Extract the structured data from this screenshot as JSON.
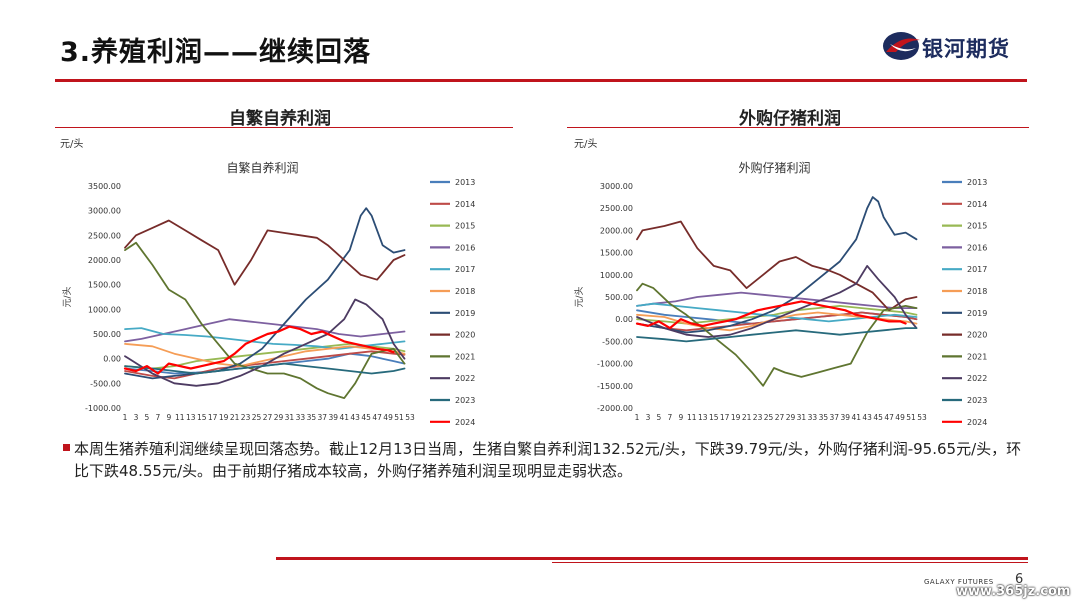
{
  "header": {
    "title": "3.养殖利润——继续回落",
    "logo_text": "银河期货"
  },
  "panels": [
    {
      "heading": "自繁自养利润",
      "unit": "元/头"
    },
    {
      "heading": "外购仔猪利润",
      "unit": "元/头"
    }
  ],
  "body": {
    "text": "本周生猪养殖利润继续呈现回落态势。截止12月13日当周，生猪自繁自养利润132.52元/头，下跌39.79元/头，外购仔猪利润-95.65元/头，环比下跌48.55元/头。由于前期仔猪成本较高，外购仔猪养殖利润呈现明显走弱状态。"
  },
  "footer": {
    "brand": "GALAXY FUTURES",
    "page_number": "6",
    "watermark": "www.365jz.com"
  },
  "colors": {
    "accent": "#c0141c",
    "brand_navy": "#1d2c5e"
  },
  "chart_data": [
    {
      "type": "line",
      "title": "自繁自养利润",
      "ylabel": "元/头",
      "ylim": [
        -1000,
        3500
      ],
      "yticks": [
        -1000,
        -500,
        0,
        500,
        1000,
        1500,
        2000,
        2500,
        3000,
        3500
      ],
      "ytick_labels": [
        "-1000.00",
        "-500.00",
        "0.00",
        "500.00",
        "1000.00",
        "1500.00",
        "2000.00",
        "2500.00",
        "3000.00",
        "3500.00"
      ],
      "x_range": [
        1,
        53
      ],
      "xtick_labels": [
        "1",
        "3",
        "5",
        "7",
        "9",
        "11",
        "13",
        "15",
        "17",
        "19",
        "21",
        "23",
        "25",
        "27",
        "29",
        "31",
        "33",
        "35",
        "37",
        "39",
        "41",
        "43",
        "45",
        "47",
        "49",
        "51",
        "53"
      ],
      "legend_position": "right",
      "series": [
        {
          "name": "2013",
          "color": "#4a7ebb",
          "x": [
            1,
            6,
            10,
            14,
            18,
            22,
            26,
            30,
            34,
            38,
            42,
            46,
            48,
            50,
            52
          ],
          "y": [
            -200,
            -250,
            -300,
            -280,
            -250,
            -200,
            -150,
            -100,
            -50,
            0,
            100,
            50,
            0,
            -50,
            -100
          ]
        },
        {
          "name": "2014",
          "color": "#be4b48",
          "x": [
            1,
            6,
            10,
            14,
            18,
            22,
            26,
            30,
            34,
            38,
            42,
            46,
            50,
            52
          ],
          "y": [
            -250,
            -350,
            -400,
            -300,
            -200,
            -150,
            -100,
            -50,
            0,
            50,
            100,
            150,
            100,
            80
          ]
        },
        {
          "name": "2015",
          "color": "#98b954",
          "x": [
            1,
            6,
            10,
            14,
            18,
            22,
            26,
            30,
            34,
            38,
            42,
            46,
            50,
            52
          ],
          "y": [
            -150,
            -200,
            -150,
            -50,
            0,
            50,
            100,
            150,
            200,
            250,
            300,
            250,
            200,
            150
          ]
        },
        {
          "name": "2016",
          "color": "#7d60a0",
          "x": [
            1,
            4,
            8,
            12,
            16,
            20,
            24,
            28,
            32,
            36,
            40,
            44,
            48,
            52
          ],
          "y": [
            350,
            400,
            500,
            600,
            700,
            800,
            750,
            700,
            650,
            600,
            500,
            450,
            500,
            550
          ]
        },
        {
          "name": "2017",
          "color": "#46aac5",
          "x": [
            1,
            4,
            8,
            12,
            16,
            20,
            24,
            28,
            32,
            36,
            40,
            44,
            48,
            52
          ],
          "y": [
            600,
            620,
            500,
            480,
            450,
            400,
            350,
            300,
            280,
            250,
            200,
            250,
            300,
            350
          ]
        },
        {
          "name": "2018",
          "color": "#f59d56",
          "x": [
            1,
            6,
            10,
            14,
            18,
            22,
            26,
            30,
            34,
            38,
            42,
            46,
            50,
            52
          ],
          "y": [
            300,
            250,
            100,
            0,
            -100,
            -150,
            -50,
            50,
            150,
            200,
            250,
            200,
            150,
            100
          ]
        },
        {
          "name": "2019",
          "color": "#2c4d75",
          "x": [
            1,
            6,
            10,
            14,
            18,
            22,
            26,
            30,
            34,
            38,
            42,
            44,
            45,
            46,
            48,
            50,
            52
          ],
          "y": [
            -300,
            -400,
            -350,
            -300,
            -250,
            -100,
            200,
            700,
            1200,
            1600,
            2200,
            2900,
            3050,
            2900,
            2300,
            2150,
            2200
          ]
        },
        {
          "name": "2020",
          "color": "#772c2a",
          "x": [
            1,
            3,
            6,
            9,
            12,
            15,
            18,
            21,
            24,
            27,
            30,
            33,
            36,
            38,
            41,
            44,
            47,
            50,
            52
          ],
          "y": [
            2250,
            2500,
            2650,
            2800,
            2600,
            2400,
            2200,
            1500,
            2000,
            2600,
            2550,
            2500,
            2450,
            2300,
            2000,
            1700,
            1600,
            2000,
            2100
          ]
        },
        {
          "name": "2021",
          "color": "#5f7530",
          "x": [
            1,
            3,
            6,
            9,
            12,
            15,
            18,
            21,
            24,
            27,
            30,
            33,
            36,
            38,
            41,
            43,
            46,
            50,
            52
          ],
          "y": [
            2200,
            2350,
            1900,
            1400,
            1200,
            700,
            300,
            -100,
            -200,
            -300,
            -300,
            -400,
            -600,
            -700,
            -800,
            -500,
            100,
            200,
            -100
          ]
        },
        {
          "name": "2022",
          "color": "#4d3b62",
          "x": [
            1,
            6,
            10,
            14,
            18,
            22,
            26,
            30,
            34,
            38,
            41,
            43,
            45,
            48,
            50,
            52
          ],
          "y": [
            50,
            -300,
            -500,
            -550,
            -500,
            -350,
            -150,
            100,
            300,
            500,
            800,
            1200,
            1100,
            800,
            300,
            0
          ]
        },
        {
          "name": "2023",
          "color": "#276a7c",
          "x": [
            1,
            6,
            10,
            14,
            18,
            22,
            26,
            30,
            34,
            38,
            42,
            46,
            50,
            52
          ],
          "y": [
            -150,
            -200,
            -250,
            -300,
            -250,
            -200,
            -150,
            -100,
            -150,
            -200,
            -250,
            -300,
            -250,
            -200
          ]
        },
        {
          "name": "2024",
          "color": "#ff0000",
          "x": [
            1,
            3,
            5,
            7,
            9,
            11,
            13,
            15,
            17,
            19,
            21,
            23,
            25,
            27,
            29,
            31,
            33,
            35,
            37,
            39,
            41,
            43,
            45,
            47,
            49,
            50
          ],
          "y": [
            -200,
            -250,
            -150,
            -300,
            -100,
            -150,
            -200,
            -150,
            -100,
            -50,
            100,
            300,
            400,
            500,
            550,
            650,
            600,
            500,
            550,
            450,
            350,
            300,
            250,
            200,
            170,
            132
          ]
        }
      ]
    },
    {
      "type": "line",
      "title": "外购仔猪利润",
      "ylabel": "元/头",
      "ylim": [
        -2000,
        3000
      ],
      "yticks": [
        -2000,
        -1500,
        -1000,
        -500,
        0,
        500,
        1000,
        1500,
        2000,
        2500,
        3000
      ],
      "ytick_labels": [
        "-2000.00",
        "-1500.00",
        "-1000.00",
        "-500.00",
        "0.00",
        "500.00",
        "1000.00",
        "1500.00",
        "2000.00",
        "2500.00",
        "3000.00"
      ],
      "x_range": [
        1,
        53
      ],
      "xtick_labels": [
        "1",
        "3",
        "5",
        "7",
        "9",
        "11",
        "13",
        "15",
        "17",
        "19",
        "21",
        "23",
        "25",
        "27",
        "29",
        "31",
        "33",
        "35",
        "37",
        "39",
        "41",
        "43",
        "45",
        "47",
        "49",
        "51",
        "53"
      ],
      "legend_position": "right",
      "series": [
        {
          "name": "2013",
          "color": "#4a7ebb",
          "x": [
            1,
            6,
            10,
            14,
            18,
            22,
            26,
            30,
            34,
            38,
            42,
            46,
            50,
            52
          ],
          "y": [
            200,
            100,
            50,
            0,
            -50,
            -100,
            -50,
            0,
            50,
            100,
            150,
            100,
            50,
            0
          ]
        },
        {
          "name": "2014",
          "color": "#be4b48",
          "x": [
            1,
            6,
            10,
            14,
            18,
            22,
            26,
            30,
            34,
            38,
            42,
            46,
            50,
            52
          ],
          "y": [
            -100,
            -200,
            -250,
            -200,
            -150,
            -100,
            -50,
            0,
            50,
            100,
            150,
            100,
            50,
            0
          ]
        },
        {
          "name": "2015",
          "color": "#98b954",
          "x": [
            1,
            6,
            10,
            14,
            18,
            22,
            26,
            30,
            34,
            38,
            42,
            46,
            50,
            52
          ],
          "y": [
            0,
            -50,
            -100,
            -50,
            0,
            50,
            100,
            200,
            250,
            300,
            250,
            200,
            150,
            100
          ]
        },
        {
          "name": "2016",
          "color": "#7d60a0",
          "x": [
            1,
            4,
            8,
            12,
            16,
            20,
            24,
            28,
            32,
            36,
            40,
            44,
            48,
            52
          ],
          "y": [
            300,
            350,
            400,
            500,
            550,
            600,
            550,
            500,
            450,
            400,
            350,
            300,
            250,
            250
          ]
        },
        {
          "name": "2017",
          "color": "#46aac5",
          "x": [
            1,
            4,
            8,
            12,
            16,
            20,
            24,
            28,
            32,
            36,
            40,
            44,
            48,
            52
          ],
          "y": [
            300,
            350,
            300,
            250,
            200,
            150,
            100,
            50,
            0,
            -50,
            0,
            50,
            100,
            50
          ]
        },
        {
          "name": "2018",
          "color": "#f59d56",
          "x": [
            1,
            6,
            10,
            14,
            18,
            22,
            26,
            30,
            34,
            38,
            42,
            46,
            50,
            52
          ],
          "y": [
            100,
            50,
            -100,
            -200,
            -250,
            -150,
            0,
            100,
            150,
            100,
            50,
            0,
            -50,
            -100
          ]
        },
        {
          "name": "2019",
          "color": "#2c4d75",
          "x": [
            1,
            6,
            10,
            14,
            18,
            22,
            26,
            30,
            34,
            38,
            41,
            43,
            44,
            45,
            46,
            48,
            50,
            52
          ],
          "y": [
            -100,
            -200,
            -300,
            -250,
            -150,
            0,
            200,
            500,
            900,
            1300,
            1800,
            2500,
            2750,
            2650,
            2300,
            1900,
            1950,
            1800
          ]
        },
        {
          "name": "2020",
          "color": "#772c2a",
          "x": [
            1,
            2,
            6,
            9,
            12,
            15,
            18,
            21,
            24,
            27,
            30,
            33,
            36,
            38,
            41,
            44,
            47,
            50,
            52
          ],
          "y": [
            1800,
            2000,
            2100,
            2200,
            1600,
            1200,
            1100,
            700,
            1000,
            1300,
            1400,
            1200,
            1100,
            1000,
            800,
            600,
            200,
            450,
            500
          ]
        },
        {
          "name": "2021",
          "color": "#5f7530",
          "x": [
            1,
            2,
            4,
            7,
            10,
            13,
            16,
            19,
            22,
            24,
            26,
            28,
            31,
            34,
            37,
            40,
            43,
            46,
            50,
            52
          ],
          "y": [
            650,
            800,
            700,
            350,
            100,
            -200,
            -500,
            -800,
            -1200,
            -1500,
            -1100,
            -1200,
            -1300,
            -1200,
            -1100,
            -1000,
            -300,
            200,
            300,
            250
          ]
        },
        {
          "name": "2022",
          "color": "#4d3b62",
          "x": [
            1,
            6,
            10,
            14,
            18,
            22,
            26,
            30,
            34,
            38,
            41,
            43,
            45,
            48,
            50,
            52
          ],
          "y": [
            50,
            -200,
            -350,
            -400,
            -350,
            -200,
            0,
            200,
            400,
            600,
            800,
            1200,
            900,
            500,
            100,
            -200
          ]
        },
        {
          "name": "2023",
          "color": "#276a7c",
          "x": [
            1,
            6,
            10,
            14,
            18,
            22,
            26,
            30,
            34,
            38,
            42,
            46,
            50,
            52
          ],
          "y": [
            -400,
            -450,
            -500,
            -450,
            -400,
            -350,
            -300,
            -250,
            -300,
            -350,
            -300,
            -250,
            -200,
            -200
          ]
        },
        {
          "name": "2024",
          "color": "#ff0000",
          "x": [
            1,
            3,
            5,
            7,
            9,
            11,
            13,
            15,
            17,
            19,
            21,
            23,
            25,
            27,
            29,
            31,
            33,
            35,
            37,
            39,
            41,
            43,
            45,
            47,
            49,
            50
          ],
          "y": [
            -100,
            -150,
            -50,
            -200,
            0,
            -100,
            -150,
            -100,
            -50,
            0,
            100,
            200,
            250,
            300,
            350,
            400,
            350,
            300,
            250,
            200,
            100,
            50,
            0,
            -50,
            -47,
            -96
          ]
        }
      ]
    }
  ]
}
